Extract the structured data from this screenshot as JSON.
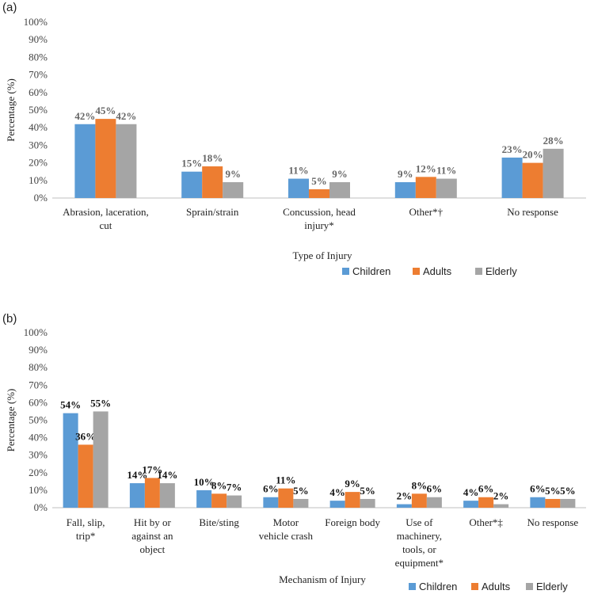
{
  "chart_data": [
    {
      "panel_label": "(a)",
      "type": "bar",
      "categories": [
        [
          "Abrasion, laceration,",
          "cut"
        ],
        [
          "Sprain/strain"
        ],
        [
          "Concussion, head",
          "injury*"
        ],
        [
          "Other*†"
        ],
        [
          "No response"
        ]
      ],
      "series": [
        {
          "name": "Children",
          "values": [
            42,
            15,
            11,
            9,
            23
          ],
          "labels": [
            "42%",
            "15%",
            "11%",
            "9%",
            "23%"
          ]
        },
        {
          "name": "Adults",
          "values": [
            45,
            18,
            5,
            12,
            20
          ],
          "labels": [
            "45%",
            "18%",
            "5%",
            "12%",
            "20%"
          ]
        },
        {
          "name": "Elderly",
          "values": [
            42,
            9,
            9,
            11,
            28
          ],
          "labels": [
            "42%",
            "9%",
            "9%",
            "11%",
            "28%"
          ]
        }
      ],
      "yticks": [
        "0%",
        "10%",
        "20%",
        "30%",
        "40%",
        "50%",
        "60%",
        "70%",
        "80%",
        "90%",
        "100%"
      ],
      "ylim": [
        0,
        100
      ],
      "ylabel": "Percentage (%)",
      "xlabel": "Type of Injury",
      "grid": false,
      "legend_position": "bottom-right",
      "label_color": "#666666"
    },
    {
      "panel_label": "(b)",
      "type": "bar",
      "categories": [
        [
          "Fall, slip,",
          "trip*"
        ],
        [
          "Hit by or",
          "against an",
          "object"
        ],
        [
          "Bite/sting"
        ],
        [
          "Motor",
          "vehicle crash"
        ],
        [
          "Foreign body"
        ],
        [
          "Use of",
          "machinery,",
          "tools, or",
          "equipment*"
        ],
        [
          "Other*‡"
        ],
        [
          "No response"
        ]
      ],
      "series": [
        {
          "name": "Children",
          "values": [
            54,
            14,
            10,
            6,
            4,
            2,
            4,
            6
          ],
          "labels": [
            "54%",
            "14%",
            "10%",
            "6%",
            "4%",
            "2%",
            "4%",
            "6%"
          ]
        },
        {
          "name": "Adults",
          "values": [
            36,
            17,
            8,
            11,
            9,
            8,
            6,
            5
          ],
          "labels": [
            "36%",
            "17%",
            "8%",
            "11%",
            "9%",
            "8%",
            "6%",
            "5%"
          ]
        },
        {
          "name": "Elderly",
          "values": [
            55,
            14,
            7,
            5,
            5,
            6,
            2,
            5
          ],
          "labels": [
            "55%",
            "14%",
            "7%",
            "5%",
            "5%",
            "6%",
            "2%",
            "5%"
          ]
        }
      ],
      "yticks": [
        "0%",
        "10%",
        "20%",
        "30%",
        "40%",
        "50%",
        "60%",
        "70%",
        "80%",
        "90%",
        "100%"
      ],
      "ylim": [
        0,
        100
      ],
      "ylabel": "Percentage (%)",
      "xlabel": "Mechanism of Injury",
      "grid": false,
      "legend_position": "bottom-right",
      "label_color": "#111111"
    }
  ],
  "colors": {
    "Children": "#5b9bd5",
    "Adults": "#ed7d31",
    "Elderly": "#a5a5a5",
    "axis": "#bfbfbf"
  }
}
